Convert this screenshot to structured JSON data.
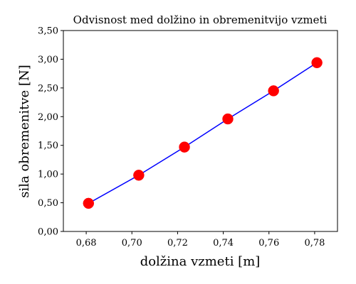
{
  "chart_data": {
    "type": "line",
    "title": "Odvisnost med dolžino in obremenitvijo vzmeti",
    "xlabel": "dolžina vzmeti [m]",
    "ylabel": "sila obremenitve [N]",
    "xlim": [
      0.67,
      0.79
    ],
    "ylim": [
      0,
      3.5
    ],
    "xticks": [
      0.68,
      0.7,
      0.72,
      0.74,
      0.76,
      0.78
    ],
    "xtick_labels": [
      "0,68",
      "0,70",
      "0,72",
      "0,74",
      "0,76",
      "0,78"
    ],
    "yticks": [
      0,
      0.5,
      1.0,
      1.5,
      2.0,
      2.5,
      3.0,
      3.5
    ],
    "ytick_labels": [
      "0,00",
      "0,50",
      "1,00",
      "1,50",
      "2,00",
      "2,50",
      "3,00",
      "3,50"
    ],
    "grid": false,
    "series": [
      {
        "x": [
          0.681,
          0.703,
          0.723,
          0.742,
          0.762,
          0.781
        ],
        "y": [
          0.49,
          0.98,
          1.47,
          1.96,
          2.45,
          2.94
        ],
        "line_color": "#0000ff",
        "marker_color": "#ff0000"
      }
    ]
  }
}
